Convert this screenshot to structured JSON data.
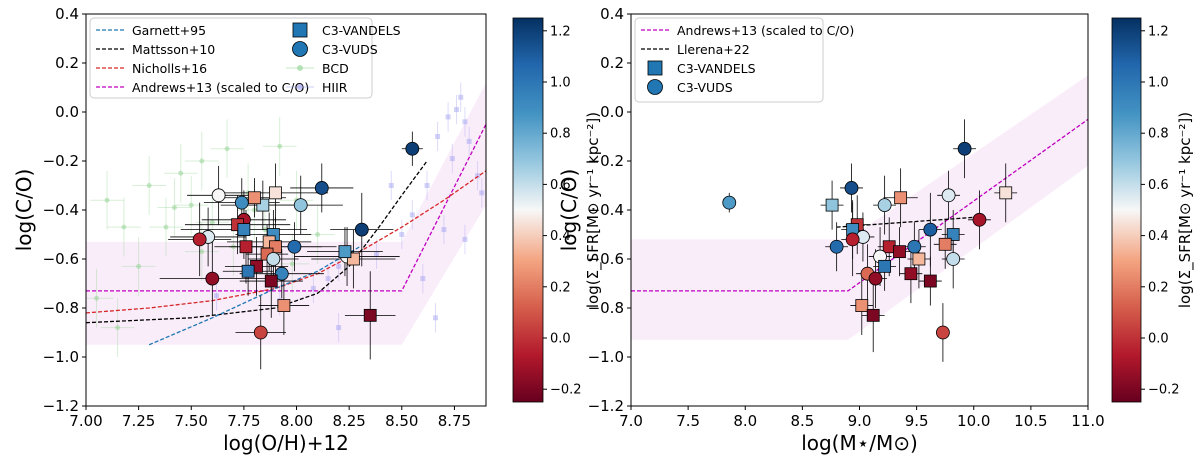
{
  "chart_data": [
    {
      "type": "scatter",
      "xlabel": "log(O/H)+12",
      "ylabel": "log(C/O)",
      "xlim": [
        7.0,
        8.9
      ],
      "ylim": [
        -1.2,
        0.4
      ],
      "xticks": [
        7.0,
        7.25,
        7.5,
        7.75,
        8.0,
        8.25,
        8.5,
        8.75
      ],
      "xtick_labels": [
        "7.00",
        "7.25",
        "7.50",
        "7.75",
        "8.00",
        "8.25",
        "8.50",
        "8.75"
      ],
      "yticks": [
        -1.2,
        -1.0,
        -0.8,
        -0.6,
        -0.4,
        -0.2,
        0.0,
        0.2,
        0.4
      ],
      "ytick_labels": [
        "−1.2",
        "−1.0",
        "−0.8",
        "−0.6",
        "−0.4",
        "−0.2",
        "0.0",
        "0.2",
        "0.4"
      ],
      "legend": [
        {
          "label": "Garnett+95",
          "kind": "dash",
          "color": "#1f77b4"
        },
        {
          "label": "Mattsson+10",
          "kind": "dash",
          "color": "#000000"
        },
        {
          "label": "Nicholls+16",
          "kind": "dash",
          "color": "#d62728"
        },
        {
          "label": "Andrews+13 (scaled to C/O)",
          "kind": "dash",
          "color": "#bf00bf"
        },
        {
          "label": "C3-VANDELS",
          "kind": "square",
          "color": "#2077b4"
        },
        {
          "label": "C3-VUDS",
          "kind": "circle",
          "color": "#2077b4"
        },
        {
          "label": "BCD",
          "kind": "dot",
          "color": "#8fd18f"
        },
        {
          "label": "HIIR",
          "kind": "dot",
          "color": "#9b9bf0"
        }
      ],
      "colorbar": {
        "label": "log(Σ_SFR[M⊙ yr⁻¹ kpc⁻²])",
        "range": [
          -0.25,
          1.25
        ],
        "ticks": [
          -0.2,
          0.0,
          0.2,
          0.4,
          0.6,
          0.8,
          1.0,
          1.2
        ],
        "tick_labels": [
          "−0.2",
          "0.0",
          "0.2",
          "0.4",
          "0.6",
          "0.8",
          "1.0",
          "1.2"
        ]
      },
      "band": [
        [
          7.0,
          -0.53
        ],
        [
          8.5,
          -0.53
        ],
        [
          8.9,
          0.12
        ],
        [
          8.9,
          -0.38
        ],
        [
          8.5,
          -0.95
        ],
        [
          7.0,
          -0.95
        ]
      ],
      "series": [
        {
          "name": "Andrews+13 (scaled to C/O)",
          "color": "#bf00bf",
          "x": [
            7.0,
            8.5,
            8.9
          ],
          "y": [
            -0.73,
            -0.73,
            -0.05
          ]
        },
        {
          "name": "Nicholls+16",
          "color": "#d62728",
          "x": [
            7.0,
            7.3,
            7.6,
            7.9,
            8.1,
            8.3,
            8.5,
            8.7,
            8.9
          ],
          "y": [
            -0.82,
            -0.8,
            -0.77,
            -0.72,
            -0.66,
            -0.57,
            -0.47,
            -0.36,
            -0.24
          ]
        },
        {
          "name": "Mattsson+10",
          "color": "#000000",
          "x": [
            7.0,
            7.5,
            7.9,
            8.1,
            8.25,
            8.4,
            8.5,
            8.62
          ],
          "y": [
            -0.86,
            -0.84,
            -0.8,
            -0.74,
            -0.63,
            -0.46,
            -0.34,
            -0.2
          ]
        },
        {
          "name": "Garnett+95",
          "color": "#1f77b4",
          "x": [
            7.3,
            7.6,
            7.9,
            8.1,
            8.3
          ],
          "y": [
            -0.95,
            -0.84,
            -0.72,
            -0.65,
            -0.55
          ]
        }
      ],
      "bcd": [
        {
          "x": 7.05,
          "y": -0.76
        },
        {
          "x": 7.1,
          "y": -0.36
        },
        {
          "x": 7.15,
          "y": -0.88
        },
        {
          "x": 7.3,
          "y": -0.3
        },
        {
          "x": 7.38,
          "y": -0.47
        },
        {
          "x": 7.42,
          "y": -0.39
        },
        {
          "x": 7.45,
          "y": -0.25
        },
        {
          "x": 7.5,
          "y": -0.38
        },
        {
          "x": 7.55,
          "y": -0.57
        },
        {
          "x": 7.6,
          "y": -0.45
        },
        {
          "x": 7.67,
          "y": -0.15
        },
        {
          "x": 7.7,
          "y": -0.55
        },
        {
          "x": 7.8,
          "y": -0.4
        },
        {
          "x": 7.85,
          "y": -0.48
        },
        {
          "x": 7.92,
          "y": -0.14
        },
        {
          "x": 8.0,
          "y": -0.36
        },
        {
          "x": 7.25,
          "y": -0.63
        },
        {
          "x": 7.98,
          "y": -0.62
        },
        {
          "x": 8.1,
          "y": -0.5
        },
        {
          "x": 7.77,
          "y": -0.33
        },
        {
          "x": 7.55,
          "y": -0.2
        },
        {
          "x": 7.18,
          "y": -0.47
        }
      ],
      "hiir": [
        {
          "x": 8.72,
          "y": -0.02
        },
        {
          "x": 8.76,
          "y": 0.01
        },
        {
          "x": 8.8,
          "y": -0.04
        },
        {
          "x": 8.67,
          "y": -0.1
        },
        {
          "x": 8.82,
          "y": -0.12
        },
        {
          "x": 8.74,
          "y": -0.19
        },
        {
          "x": 8.86,
          "y": -0.26
        },
        {
          "x": 8.62,
          "y": -0.3
        },
        {
          "x": 8.7,
          "y": -0.48
        },
        {
          "x": 8.55,
          "y": -0.42
        },
        {
          "x": 8.45,
          "y": -0.3
        },
        {
          "x": 8.08,
          "y": -0.72
        },
        {
          "x": 8.15,
          "y": -0.68
        },
        {
          "x": 8.2,
          "y": -0.63
        },
        {
          "x": 7.92,
          "y": -0.77
        },
        {
          "x": 8.6,
          "y": -0.68
        },
        {
          "x": 8.8,
          "y": -0.52
        },
        {
          "x": 8.66,
          "y": -0.84
        },
        {
          "x": 8.2,
          "y": -0.88
        },
        {
          "x": 8.38,
          "y": -0.58
        },
        {
          "x": 8.5,
          "y": -0.5
        },
        {
          "x": 8.88,
          "y": -0.33
        },
        {
          "x": 8.78,
          "y": 0.06
        },
        {
          "x": 7.62,
          "y": -0.75
        }
      ],
      "points": [
        {
          "s": "VUDS",
          "x": 8.55,
          "y": -0.15,
          "c": 1.2,
          "xe": 0.05,
          "ye": 0.07
        },
        {
          "s": "VUDS",
          "x": 8.12,
          "y": -0.31,
          "c": 1.15,
          "xe": 0.15,
          "ye": 0.1
        },
        {
          "s": "VUDS",
          "x": 8.02,
          "y": -0.38,
          "c": 0.7,
          "xe": 0.2,
          "ye": 0.12
        },
        {
          "s": "VANDELS",
          "x": 7.9,
          "y": -0.33,
          "c": 0.45,
          "xe": 0.25,
          "ye": 0.12
        },
        {
          "s": "VANDELS",
          "x": 7.84,
          "y": -0.38,
          "c": 0.65,
          "xe": 0.2,
          "ye": 0.1
        },
        {
          "s": "VANDELS",
          "x": 7.8,
          "y": -0.35,
          "c": 0.25,
          "xe": 0.15,
          "ye": 0.08
        },
        {
          "s": "VUDS",
          "x": 7.74,
          "y": -0.37,
          "c": 0.9,
          "xe": 0.18,
          "ye": 0.1
        },
        {
          "s": "VUDS",
          "x": 7.63,
          "y": -0.34,
          "c": 0.5,
          "xe": 0.15,
          "ye": 0.12
        },
        {
          "s": "VUDS",
          "x": 7.75,
          "y": -0.44,
          "c": -0.1,
          "xe": 0.2,
          "ye": 0.12
        },
        {
          "s": "VANDELS",
          "x": 7.72,
          "y": -0.46,
          "c": 0.0,
          "xe": 0.25,
          "ye": 0.12
        },
        {
          "s": "VANDELS",
          "x": 7.75,
          "y": -0.48,
          "c": 0.95,
          "xe": 0.3,
          "ye": 0.12
        },
        {
          "s": "VUDS",
          "x": 7.58,
          "y": -0.51,
          "c": 0.55,
          "xe": 0.18,
          "ye": 0.12
        },
        {
          "s": "VUDS",
          "x": 7.54,
          "y": -0.52,
          "c": -0.05,
          "xe": 0.15,
          "ye": 0.15
        },
        {
          "s": "VANDELS",
          "x": 7.89,
          "y": -0.5,
          "c": 0.9,
          "xe": 0.18,
          "ye": 0.1
        },
        {
          "s": "VANDELS",
          "x": 7.87,
          "y": -0.53,
          "c": 0.35,
          "xe": 0.2,
          "ye": 0.12
        },
        {
          "s": "VUDS",
          "x": 7.99,
          "y": -0.55,
          "c": 1.05,
          "xe": 0.2,
          "ye": 0.1
        },
        {
          "s": "VANDELS",
          "x": 7.9,
          "y": -0.55,
          "c": 0.2,
          "xe": 0.22,
          "ye": 0.12
        },
        {
          "s": "VANDELS",
          "x": 7.76,
          "y": -0.55,
          "c": -0.05,
          "xe": 0.15,
          "ye": 0.15
        },
        {
          "s": "VANDELS",
          "x": 7.86,
          "y": -0.58,
          "c": 0.15,
          "xe": 0.1,
          "ye": 0.12
        },
        {
          "s": "VUDS",
          "x": 7.89,
          "y": -0.6,
          "c": 0.6,
          "xe": 0.12,
          "ye": 0.1
        },
        {
          "s": "VANDELS",
          "x": 7.81,
          "y": -0.63,
          "c": -0.15,
          "xe": 0.15,
          "ye": 0.12
        },
        {
          "s": "VUDS",
          "x": 7.93,
          "y": -0.66,
          "c": 0.95,
          "xe": 0.2,
          "ye": 0.1
        },
        {
          "s": "VANDELS",
          "x": 7.77,
          "y": -0.65,
          "c": 1.0,
          "xe": 0.12,
          "ye": 0.1
        },
        {
          "s": "VUDS",
          "x": 7.6,
          "y": -0.68,
          "c": -0.15,
          "xe": 0.25,
          "ye": 0.15
        },
        {
          "s": "VANDELS",
          "x": 7.88,
          "y": -0.69,
          "c": -0.2,
          "xe": 0.15,
          "ye": 0.15
        },
        {
          "s": "VUDS",
          "x": 8.24,
          "y": -0.59,
          "c": 0.5,
          "xe": 0.25,
          "ye": 0.12
        },
        {
          "s": "VANDELS",
          "x": 8.27,
          "y": -0.6,
          "c": 0.35,
          "xe": 0.2,
          "ye": 0.12
        },
        {
          "s": "VUDS",
          "x": 8.31,
          "y": -0.48,
          "c": 1.2,
          "xe": 0.15,
          "ye": 0.15
        },
        {
          "s": "VANDELS",
          "x": 8.23,
          "y": -0.57,
          "c": 0.85,
          "xe": 0.18,
          "ye": 0.1
        },
        {
          "s": "VANDELS",
          "x": 7.94,
          "y": -0.79,
          "c": 0.25,
          "xe": 0.12,
          "ye": 0.12
        },
        {
          "s": "VUDS",
          "x": 7.83,
          "y": -0.9,
          "c": 0.05,
          "xe": 0.12,
          "ye": 0.15
        },
        {
          "s": "VANDELS",
          "x": 8.35,
          "y": -0.83,
          "c": -0.2,
          "xe": 0.12,
          "ye": 0.18
        }
      ]
    },
    {
      "type": "scatter",
      "xlabel": "log(M⋆/M⊙)",
      "ylabel": "log(C/O)",
      "xlim": [
        7.0,
        11.0
      ],
      "ylim": [
        -1.2,
        0.4
      ],
      "xticks": [
        7.0,
        7.5,
        8.0,
        8.5,
        9.0,
        9.5,
        10.0,
        10.5,
        11.0
      ],
      "xtick_labels": [
        "7.0",
        "7.5",
        "8.0",
        "8.5",
        "9.0",
        "9.5",
        "10.0",
        "10.5",
        "11.0"
      ],
      "yticks": [
        -1.2,
        -1.0,
        -0.8,
        -0.6,
        -0.4,
        -0.2,
        0.0,
        0.2,
        0.4
      ],
      "ytick_labels": [
        "−1.2",
        "−1.0",
        "−0.8",
        "−0.6",
        "−0.4",
        "−0.2",
        "0.0",
        "0.2",
        "0.4"
      ],
      "legend": [
        {
          "label": "Andrews+13 (scaled to C/O)",
          "kind": "dash",
          "color": "#bf00bf"
        },
        {
          "label": "Llerena+22",
          "kind": "dash",
          "color": "#000000"
        },
        {
          "label": "C3-VANDELS",
          "kind": "square",
          "color": "#2077b4"
        },
        {
          "label": "C3-VUDS",
          "kind": "circle",
          "color": "#2077b4"
        }
      ],
      "colorbar": {
        "label": "log(Σ_SFR[M⊙ yr⁻¹ kpc⁻²])",
        "range": [
          -0.25,
          1.25
        ],
        "ticks": [
          -0.2,
          0.0,
          0.2,
          0.4,
          0.6,
          0.8,
          1.0,
          1.2
        ],
        "tick_labels": [
          "−0.2",
          "0.0",
          "0.2",
          "0.4",
          "0.6",
          "0.8",
          "1.0",
          "1.2"
        ]
      },
      "band": [
        [
          7.0,
          -0.52
        ],
        [
          8.9,
          -0.52
        ],
        [
          11.0,
          0.15
        ],
        [
          11.0,
          -0.22
        ],
        [
          8.9,
          -0.93
        ],
        [
          7.0,
          -0.93
        ]
      ],
      "series": [
        {
          "name": "Andrews+13 (scaled to C/O)",
          "color": "#bf00bf",
          "x": [
            7.0,
            8.9,
            11.0
          ],
          "y": [
            -0.73,
            -0.73,
            -0.03
          ]
        },
        {
          "name": "Llerena+22",
          "color": "#000000",
          "x": [
            8.8,
            10.0
          ],
          "y": [
            -0.47,
            -0.43
          ]
        }
      ],
      "points": [
        {
          "s": "VUDS",
          "x": 7.86,
          "y": -0.37,
          "c": 0.85,
          "xe": 0,
          "ye": 0.04
        },
        {
          "s": "VUDS",
          "x": 9.92,
          "y": -0.15,
          "c": 1.2,
          "xe": 0.1,
          "ye": 0.12
        },
        {
          "s": "VANDELS",
          "x": 10.28,
          "y": -0.33,
          "c": 0.45,
          "xe": 0.1,
          "ye": 0.12
        },
        {
          "s": "VUDS",
          "x": 9.78,
          "y": -0.34,
          "c": 0.55,
          "xe": 0.1,
          "ye": 0.1
        },
        {
          "s": "VANDELS",
          "x": 9.36,
          "y": -0.35,
          "c": 0.25,
          "xe": 0.15,
          "ye": 0.12
        },
        {
          "s": "VUDS",
          "x": 9.22,
          "y": -0.38,
          "c": 0.65,
          "xe": 0.1,
          "ye": 0.12
        },
        {
          "s": "VUDS",
          "x": 8.93,
          "y": -0.31,
          "c": 1.15,
          "xe": 0.1,
          "ye": 0.1
        },
        {
          "s": "VANDELS",
          "x": 8.76,
          "y": -0.38,
          "c": 0.7,
          "xe": 0.1,
          "ye": 0.1
        },
        {
          "s": "VUDS",
          "x": 10.05,
          "y": -0.44,
          "c": -0.1,
          "xe": 0.1,
          "ye": 0.12
        },
        {
          "s": "VANDELS",
          "x": 8.98,
          "y": -0.46,
          "c": 0.0,
          "xe": 0.1,
          "ye": 0.12
        },
        {
          "s": "VANDELS",
          "x": 9.82,
          "y": -0.5,
          "c": 0.95,
          "xe": 0.1,
          "ye": 0.1
        },
        {
          "s": "VANDELS",
          "x": 8.94,
          "y": -0.48,
          "c": 0.9,
          "xe": 0.1,
          "ye": 0.12
        },
        {
          "s": "VUDS",
          "x": 9.62,
          "y": -0.48,
          "c": 1.1,
          "xe": 0.1,
          "ye": 0.15
        },
        {
          "s": "VUDS",
          "x": 9.03,
          "y": -0.51,
          "c": 0.55,
          "xe": 0.1,
          "ye": 0.1
        },
        {
          "s": "VUDS",
          "x": 8.94,
          "y": -0.52,
          "c": -0.05,
          "xe": 0.1,
          "ye": 0.15
        },
        {
          "s": "VANDELS",
          "x": 9.75,
          "y": -0.54,
          "c": 0.2,
          "xe": 0.1,
          "ye": 0.1
        },
        {
          "s": "VUDS",
          "x": 8.8,
          "y": -0.55,
          "c": 1.05,
          "xe": 0.1,
          "ye": 0.1
        },
        {
          "s": "VANDELS",
          "x": 9.26,
          "y": -0.55,
          "c": -0.05,
          "xe": 0.1,
          "ye": 0.12
        },
        {
          "s": "VUDS",
          "x": 9.48,
          "y": -0.55,
          "c": 1.0,
          "xe": 0.1,
          "ye": 0.1
        },
        {
          "s": "VANDELS",
          "x": 9.35,
          "y": -0.57,
          "c": -0.15,
          "xe": 0.1,
          "ye": 0.1
        },
        {
          "s": "VUDS",
          "x": 9.18,
          "y": -0.59,
          "c": 0.5,
          "xe": 0.1,
          "ye": 0.12
        },
        {
          "s": "VANDELS",
          "x": 9.52,
          "y": -0.6,
          "c": 0.35,
          "xe": 0.1,
          "ye": 0.12
        },
        {
          "s": "VUDS",
          "x": 9.82,
          "y": -0.6,
          "c": 0.6,
          "xe": 0.1,
          "ye": 0.12
        },
        {
          "s": "VANDELS",
          "x": 9.22,
          "y": -0.63,
          "c": 1.0,
          "xe": 0.1,
          "ye": 0.1
        },
        {
          "s": "VUDS",
          "x": 9.07,
          "y": -0.66,
          "c": 0.15,
          "xe": 0.1,
          "ye": 0.12
        },
        {
          "s": "VUDS",
          "x": 9.14,
          "y": -0.68,
          "c": -0.15,
          "xe": 0.1,
          "ye": 0.12
        },
        {
          "s": "VANDELS",
          "x": 9.62,
          "y": -0.69,
          "c": -0.2,
          "xe": 0.1,
          "ye": 0.1
        },
        {
          "s": "VANDELS",
          "x": 9.45,
          "y": -0.66,
          "c": -0.15,
          "xe": 0.1,
          "ye": 0.12
        },
        {
          "s": "VANDELS",
          "x": 9.02,
          "y": -0.79,
          "c": 0.25,
          "xe": 0.1,
          "ye": 0.12
        },
        {
          "s": "VANDELS",
          "x": 9.12,
          "y": -0.83,
          "c": -0.2,
          "xe": 0.1,
          "ye": 0.15
        },
        {
          "s": "VUDS",
          "x": 9.73,
          "y": -0.9,
          "c": 0.05,
          "xe": 0.05,
          "ye": 0.12
        }
      ]
    }
  ]
}
